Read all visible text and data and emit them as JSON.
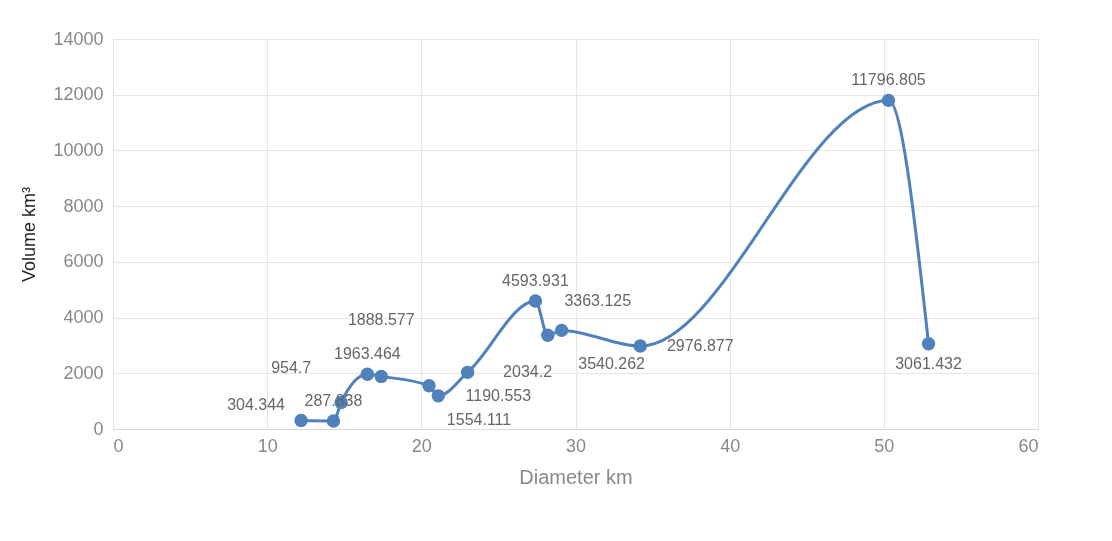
{
  "chart_data": {
    "type": "line",
    "xlabel": "Diameter km",
    "ylabel": "Volume km³",
    "x": [
      12.2,
      14.3,
      14.8,
      16.5,
      17.4,
      20.5,
      21.1,
      23.0,
      27.4,
      28.2,
      29.1,
      34.2,
      50.3,
      52.9
    ],
    "series": [
      {
        "color": "#4f81bd",
        "values": [
          304.344,
          287.838,
          954.7,
          1963.464,
          1888.577,
          1554.111,
          1190.553,
          2034.2,
          4593.931,
          3363.125,
          3540.262,
          2976.877,
          11796.805,
          3061.432
        ]
      }
    ],
    "data_labels": true,
    "marker": "circle",
    "line_style": "solid",
    "grid": true,
    "xlim": [
      0,
      60
    ],
    "xticks": [
      0,
      10,
      20,
      30,
      40,
      50,
      60
    ],
    "ylim": [
      0,
      14000
    ],
    "yticks": [
      0,
      2000,
      4000,
      6000,
      8000,
      10000,
      12000,
      14000
    ]
  }
}
